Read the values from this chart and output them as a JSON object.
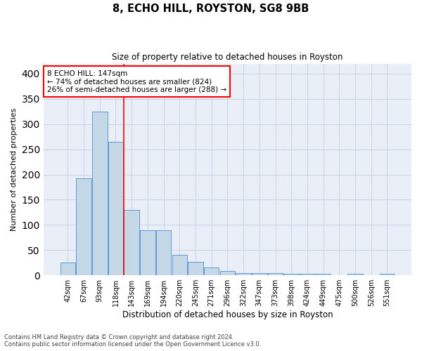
{
  "title1": "8, ECHO HILL, ROYSTON, SG8 9BB",
  "title2": "Size of property relative to detached houses in Royston",
  "xlabel": "Distribution of detached houses by size in Royston",
  "ylabel": "Number of detached properties",
  "categories": [
    "42sqm",
    "67sqm",
    "93sqm",
    "118sqm",
    "143sqm",
    "169sqm",
    "194sqm",
    "220sqm",
    "245sqm",
    "271sqm",
    "296sqm",
    "322sqm",
    "347sqm",
    "373sqm",
    "398sqm",
    "424sqm",
    "449sqm",
    "475sqm",
    "500sqm",
    "526sqm",
    "551sqm"
  ],
  "bar_heights": [
    25,
    192,
    325,
    265,
    130,
    90,
    90,
    40,
    27,
    15,
    9,
    5,
    5,
    5,
    3,
    3,
    3,
    0,
    3,
    0,
    3
  ],
  "bar_color": "#c5d8e8",
  "bar_edge_color": "#5b9bd5",
  "annotation_text": "8 ECHO HILL: 147sqm\n← 74% of detached houses are smaller (824)\n26% of semi-detached houses are larger (288) →",
  "annotation_box_color": "white",
  "annotation_box_edge_color": "red",
  "vline_color": "red",
  "ylim": [
    0,
    420
  ],
  "yticks": [
    0,
    50,
    100,
    150,
    200,
    250,
    300,
    350,
    400
  ],
  "grid_color": "#c8d4e4",
  "bg_color": "#eaeff7",
  "footnote1": "Contains HM Land Registry data © Crown copyright and database right 2024.",
  "footnote2": "Contains public sector information licensed under the Open Government Licence v3.0."
}
